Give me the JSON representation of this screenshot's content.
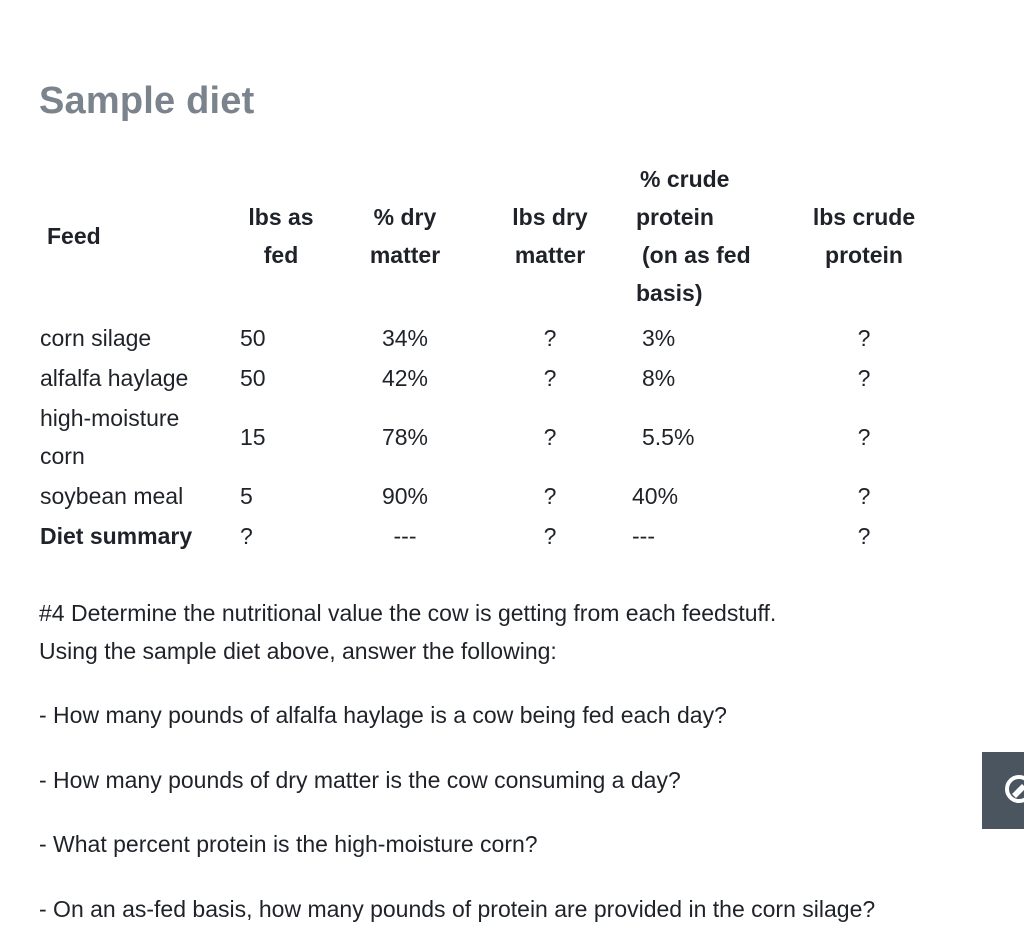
{
  "title": "Sample diet",
  "table": {
    "headers": {
      "feed": "Feed",
      "lbs_as_fed": [
        "lbs as",
        "fed"
      ],
      "pct_dry_matter": [
        "% dry",
        "matter"
      ],
      "lbs_dry_matter": [
        "lbs dry",
        "matter"
      ],
      "pct_crude_protein": [
        "% crude",
        "protein",
        "(on as fed",
        "basis)"
      ],
      "lbs_crude_protein": [
        "lbs crude",
        "protein"
      ]
    },
    "rows": [
      {
        "feed": [
          "corn silage"
        ],
        "lbs_as_fed": "50",
        "pct_dm": "34%",
        "lbs_dm": "?",
        "pct_cp": "3%",
        "lbs_cp": "?"
      },
      {
        "feed": [
          "alfalfa haylage"
        ],
        "lbs_as_fed": "50",
        "pct_dm": "42%",
        "lbs_dm": "?",
        "pct_cp": "8%",
        "lbs_cp": "?"
      },
      {
        "feed": [
          "high-moisture",
          "corn"
        ],
        "lbs_as_fed": "15",
        "pct_dm": "78%",
        "lbs_dm": "?",
        "pct_cp": "5.5%",
        "lbs_cp": "?"
      },
      {
        "feed": [
          "soybean meal"
        ],
        "lbs_as_fed": "5",
        "pct_dm": "90%",
        "lbs_dm": "?",
        "pct_cp": "40%",
        "lbs_cp": "?"
      }
    ],
    "summary": {
      "feed": "Diet summary",
      "lbs_as_fed": "?",
      "pct_dm": "---",
      "lbs_dm": "?",
      "pct_cp": "---",
      "lbs_cp": "?"
    }
  },
  "intro": {
    "line1": "#4 Determine the nutritional value the cow is getting from each feedstuff.",
    "line2": "Using the sample diet above, answer the following:"
  },
  "questions": [
    "- How many pounds of alfalfa haylage is a cow being fed each day?",
    "- How many pounds of dry matter is the cow consuming a day?",
    "- What percent protein is the high-moisture corn?",
    "- On an as-fed basis, how many pounds of protein are provided in the corn silage?"
  ],
  "side_widget": {
    "icon": "pencil-icon",
    "color": "#4a555f"
  }
}
